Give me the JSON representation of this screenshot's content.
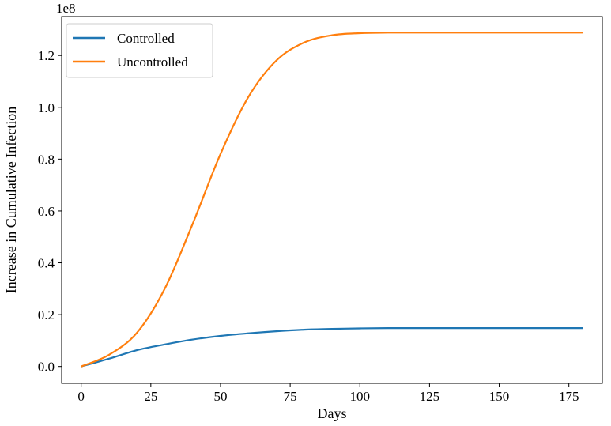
{
  "chart_data": {
    "type": "line",
    "xlabel": "Days",
    "ylabel": "Increase in Cumulative Infection",
    "y_offset_label": "1e8",
    "y_scale_factor": 100000000,
    "xlim": [
      -7,
      187
    ],
    "ylim": [
      -6500000,
      135000000
    ],
    "x_ticks": [
      0,
      25,
      50,
      75,
      100,
      125,
      150,
      175
    ],
    "x_tick_labels": [
      "0",
      "25",
      "50",
      "75",
      "100",
      "125",
      "150",
      "175"
    ],
    "y_ticks": [
      0,
      20000000,
      40000000,
      60000000,
      80000000,
      100000000,
      120000000
    ],
    "y_tick_labels": [
      "0.0",
      "0.2",
      "0.4",
      "0.6",
      "0.8",
      "1.0",
      "1.2"
    ],
    "grid": false,
    "legend_position": "top-left",
    "x": [
      0,
      10,
      20,
      30,
      40,
      50,
      60,
      70,
      80,
      90,
      100,
      110,
      120,
      130,
      140,
      150,
      160,
      170,
      180
    ],
    "series": [
      {
        "name": "Controlled",
        "color": "#1f77b4",
        "values": [
          0,
          3000000,
          6300000,
          8500000,
          10400000,
          11800000,
          12800000,
          13600000,
          14200000,
          14500000,
          14700000,
          14800000,
          14800000,
          14800000,
          14800000,
          14800000,
          14800000,
          14800000,
          14800000
        ]
      },
      {
        "name": "Uncontrolled",
        "color": "#ff7f0e",
        "values": [
          0,
          4500000,
          13000000,
          30000000,
          55000000,
          82000000,
          104000000,
          118000000,
          125000000,
          127800000,
          128600000,
          128800000,
          128800000,
          128800000,
          128800000,
          128800000,
          128800000,
          128800000,
          128800000
        ]
      }
    ]
  }
}
